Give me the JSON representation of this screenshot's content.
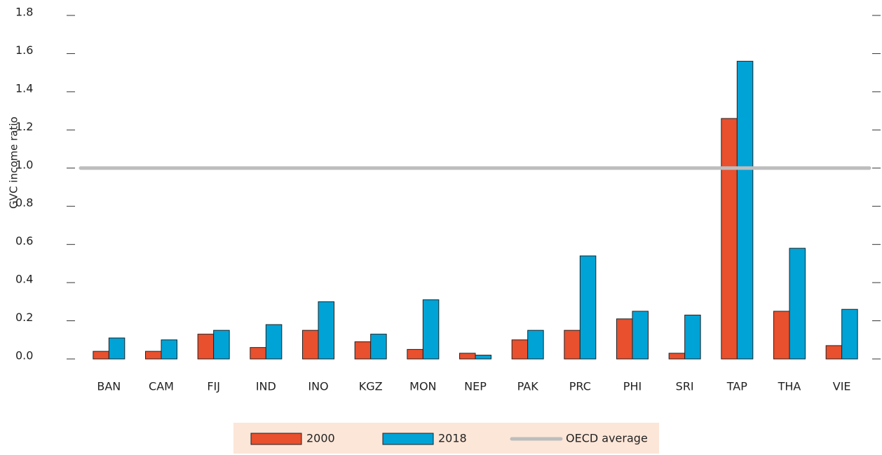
{
  "chart_data": {
    "type": "bar",
    "y_label": "GVC income ratio",
    "categories": [
      "BAN",
      "CAM",
      "FIJ",
      "IND",
      "INO",
      "KGZ",
      "MON",
      "NEP",
      "PAK",
      "PRC",
      "PHI",
      "SRI",
      "TAP",
      "THA",
      "VIE"
    ],
    "series": [
      {
        "name": "2000",
        "color": "#e8502e",
        "values": [
          0.04,
          0.04,
          0.13,
          0.06,
          0.15,
          0.09,
          0.05,
          0.03,
          0.1,
          0.15,
          0.21,
          0.03,
          1.26,
          0.25,
          0.07
        ]
      },
      {
        "name": "2018",
        "color": "#00a3d6",
        "values": [
          0.11,
          0.1,
          0.15,
          0.18,
          0.3,
          0.13,
          0.31,
          0.02,
          0.15,
          0.54,
          0.25,
          0.23,
          1.56,
          0.58,
          0.26
        ]
      }
    ],
    "reference_line": {
      "name": "OECD average",
      "value": 1,
      "color": "#bdbdbd"
    },
    "ylim": [
      0,
      1.8
    ],
    "yticks": [
      {
        "value": 0,
        "label": "0.0"
      },
      0.2,
      0.4,
      0.6,
      0.8,
      {
        "value": 1,
        "label": "1.0"
      },
      1.2,
      1.4,
      1.6,
      1.8
    ],
    "legend": "bottom"
  }
}
